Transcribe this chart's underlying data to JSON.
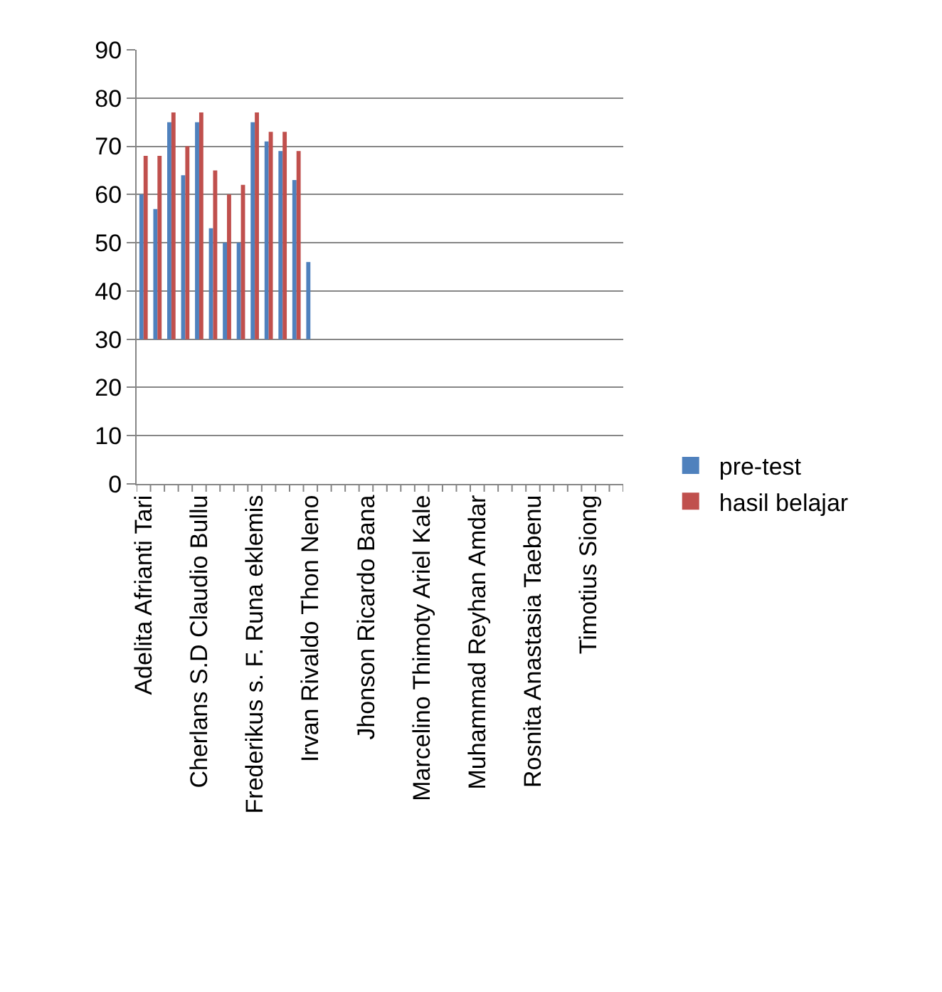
{
  "chart_data": {
    "type": "bar",
    "categories": [
      "Adelita Afrianti Tari",
      null,
      null,
      null,
      "Cherlans S.D Claudio Bullu",
      null,
      null,
      null,
      "Frederikus s. F. Runa eklemis",
      null,
      null,
      null,
      "Irvan Rivaldo Thon Neno",
      null,
      null,
      null,
      "Jhonson Ricardo Bana",
      null,
      null,
      null,
      "Marcelino Thimoty Ariel Kale",
      null,
      null,
      null,
      "Muhammad Reyhan Amdar",
      null,
      null,
      null,
      "Rosnita Anastasia Taebenu",
      null,
      null,
      null,
      "Timotius Siong",
      null,
      null
    ],
    "series": [
      {
        "name": "pre-test",
        "color": "#4f81bd",
        "base": [
          30,
          30,
          30,
          30,
          30,
          30,
          30,
          30,
          30,
          30,
          30,
          30,
          30,
          null,
          null,
          null,
          null,
          null,
          null,
          null,
          null,
          null,
          null,
          null,
          null,
          null,
          null,
          null,
          null,
          null,
          null,
          null,
          null,
          null,
          null
        ],
        "values": [
          30,
          27,
          45,
          34,
          45,
          23,
          20,
          20,
          45,
          41,
          39,
          33,
          16,
          null,
          null,
          null,
          null,
          null,
          null,
          null,
          null,
          null,
          null,
          null,
          null,
          null,
          null,
          null,
          null,
          null,
          null,
          null,
          null,
          null,
          null
        ]
      },
      {
        "name": "hasil belajar",
        "color": "#c0504d",
        "base": [
          30,
          30,
          30,
          30,
          30,
          30,
          30,
          30,
          30,
          30,
          30,
          30,
          null,
          null,
          null,
          null,
          null,
          null,
          null,
          null,
          null,
          null,
          null,
          null,
          null,
          null,
          null,
          null,
          null,
          null,
          null,
          null,
          null,
          null,
          null
        ],
        "values": [
          38,
          38,
          47,
          40,
          47,
          35,
          30,
          32,
          47,
          43,
          43,
          39,
          null,
          null,
          null,
          null,
          null,
          null,
          null,
          null,
          null,
          null,
          null,
          null,
          null,
          null,
          null,
          null,
          null,
          null,
          null,
          null,
          null,
          null,
          null
        ]
      }
    ],
    "ylim": [
      0,
      90
    ],
    "yticks": [
      0,
      10,
      20,
      30,
      40,
      50,
      60,
      70,
      80,
      90
    ],
    "grid": "y",
    "legend": "right"
  }
}
